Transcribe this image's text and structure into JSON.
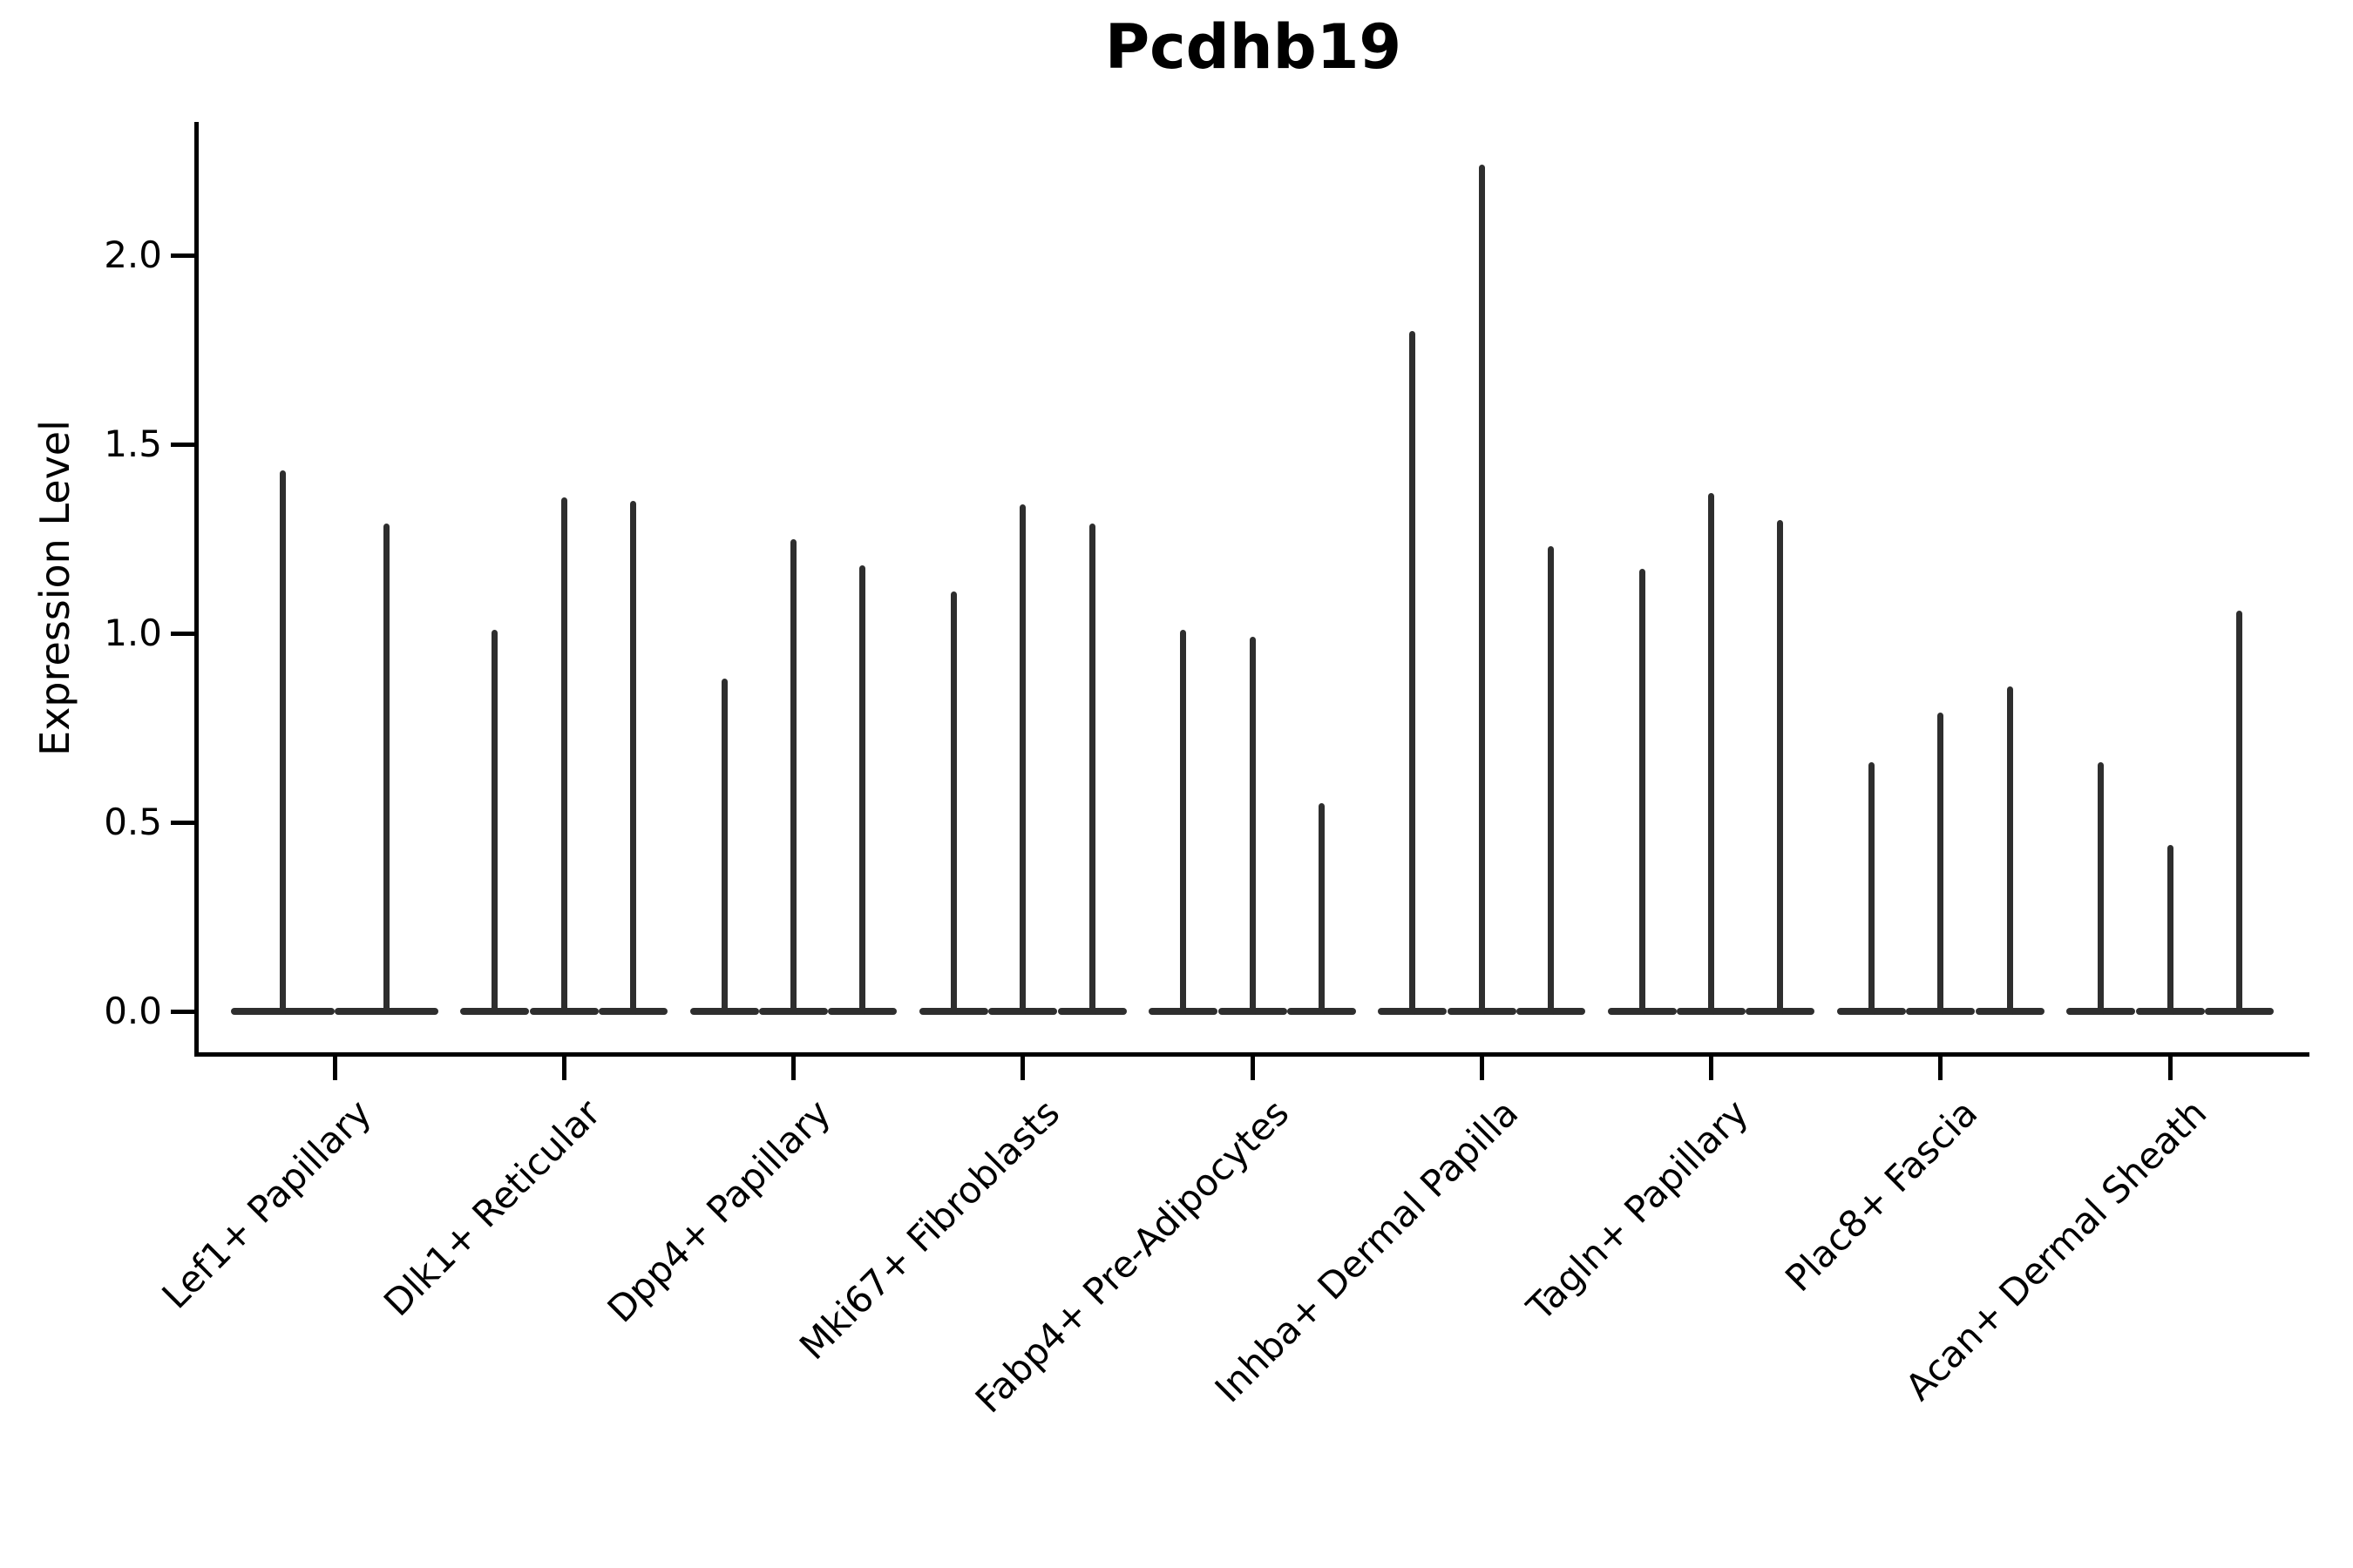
{
  "chart_data": {
    "type": "violin",
    "title": "Pcdhb19",
    "ylabel": "Expression Level",
    "xlabel": "",
    "ylim": [
      -0.11,
      2.35
    ],
    "yticks": [
      0.0,
      0.5,
      1.0,
      1.5,
      2.0
    ],
    "ytick_labels": [
      "0.0",
      "0.5",
      "1.0",
      "1.5",
      "2.0"
    ],
    "grid": false,
    "legend": "none",
    "xlabel_rotation_deg": 45,
    "categories": [
      "Lef1+ Papillary",
      "Dlk1+ Reticular",
      "Dpp4+ Papillary",
      "Mki67+ Fibroblasts",
      "Fabp4+ Pre-Adipocytes",
      "Inhba+ Dermal Papilla",
      "Tagln+ Papillary",
      "Plac8+ Fascia",
      "Acan+ Dermal Sheath"
    ],
    "groups": [
      {
        "category": "Lef1+ Papillary",
        "violin_peak_values": [
          1.43,
          1.29
        ]
      },
      {
        "category": "Dlk1+ Reticular",
        "violin_peak_values": [
          1.01,
          1.36,
          1.35
        ]
      },
      {
        "category": "Dpp4+ Papillary",
        "violin_peak_values": [
          0.88,
          1.25,
          1.18
        ]
      },
      {
        "category": "Mki67+ Fibroblasts",
        "violin_peak_values": [
          1.11,
          1.34,
          1.29
        ]
      },
      {
        "category": "Fabp4+ Pre-Adipocytes",
        "violin_peak_values": [
          1.01,
          0.99,
          0.55
        ]
      },
      {
        "category": "Inhba+ Dermal Papilla",
        "violin_peak_values": [
          1.8,
          2.24,
          1.23
        ]
      },
      {
        "category": "Tagln+ Papillary",
        "violin_peak_values": [
          1.17,
          1.37,
          1.3
        ]
      },
      {
        "category": "Plac8+ Fascia",
        "violin_peak_values": [
          0.66,
          0.79,
          0.86
        ]
      },
      {
        "category": "Acan+ Dermal Sheath",
        "violin_peak_values": [
          0.66,
          0.44,
          1.06
        ]
      }
    ],
    "colors": {
      "violin": "#2e2e2e",
      "axis": "#000000",
      "background": "#ffffff"
    }
  }
}
